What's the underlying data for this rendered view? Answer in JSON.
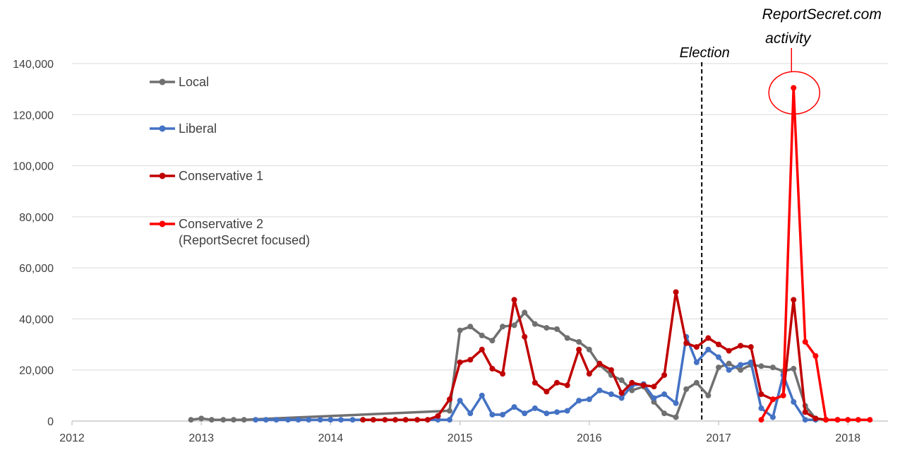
{
  "chart_data": {
    "type": "line",
    "title": "",
    "xlabel": "",
    "ylabel": "",
    "xlim": [
      2012,
      2018.19
    ],
    "ylim": [
      0,
      140000
    ],
    "x_ticks": [
      "2012",
      "2013",
      "2014",
      "2015",
      "2016",
      "2017",
      "2018"
    ],
    "y_ticks": [
      "0",
      "20,000",
      "40,000",
      "60,000",
      "80,000",
      "100,000",
      "120,000",
      "140,000"
    ],
    "grid": "horizontal",
    "legend_position": "top-left",
    "series": [
      {
        "name": "Local",
        "color": "#707070",
        "x": [
          2012.92,
          2013.0,
          2013.08,
          2013.17,
          2013.25,
          2013.33,
          2014.92,
          2015.0,
          2015.08,
          2015.17,
          2015.25,
          2015.33,
          2015.42,
          2015.5,
          2015.58,
          2015.67,
          2015.75,
          2015.83,
          2015.92,
          2016.0,
          2016.08,
          2016.17,
          2016.25,
          2016.33,
          2016.42,
          2016.5,
          2016.58,
          2016.67,
          2016.75,
          2016.83,
          2016.92,
          2017.0,
          2017.08,
          2017.17,
          2017.25,
          2017.33,
          2017.42,
          2017.5,
          2017.58,
          2017.67,
          2017.75,
          2017.83
        ],
        "y": [
          500,
          1000,
          500,
          500,
          500,
          500,
          4000,
          35500,
          37000,
          33500,
          31500,
          37000,
          37500,
          42500,
          38000,
          36500,
          36000,
          32500,
          31000,
          28000,
          22000,
          18000,
          16000,
          12000,
          13500,
          7500,
          3000,
          1500,
          12500,
          15000,
          10000,
          21000,
          22500,
          20000,
          22000,
          21500,
          21000,
          19500,
          20500,
          6000,
          1000,
          500
        ]
      },
      {
        "name": "Liberal",
        "color": "#4472C4",
        "x": [
          2013.42,
          2013.5,
          2013.58,
          2013.67,
          2013.75,
          2013.83,
          2013.92,
          2014.0,
          2014.08,
          2014.17,
          2014.83,
          2014.92,
          2015.0,
          2015.08,
          2015.17,
          2015.25,
          2015.33,
          2015.42,
          2015.5,
          2015.58,
          2015.67,
          2015.75,
          2015.83,
          2015.92,
          2016.0,
          2016.08,
          2016.17,
          2016.25,
          2016.33,
          2016.42,
          2016.5,
          2016.58,
          2016.67,
          2016.75,
          2016.83,
          2016.92,
          2017.0,
          2017.08,
          2017.17,
          2017.25,
          2017.33,
          2017.42,
          2017.5,
          2017.58,
          2017.67,
          2017.75
        ],
        "y": [
          500,
          500,
          500,
          500,
          500,
          500,
          500,
          500,
          500,
          500,
          500,
          500,
          8000,
          3000,
          10000,
          2500,
          2500,
          5500,
          3000,
          5000,
          3000,
          3500,
          4000,
          8000,
          8500,
          12000,
          10500,
          9000,
          14000,
          14500,
          9000,
          10500,
          7000,
          33000,
          23000,
          28000,
          25000,
          20000,
          22000,
          23000,
          5000,
          1500,
          18000,
          7500,
          500,
          500
        ]
      },
      {
        "name": "Conservative 1",
        "color": "#C00000",
        "x": [
          2014.25,
          2014.33,
          2014.42,
          2014.5,
          2014.58,
          2014.67,
          2014.75,
          2014.83,
          2014.92,
          2015.0,
          2015.08,
          2015.17,
          2015.25,
          2015.33,
          2015.42,
          2015.5,
          2015.58,
          2015.67,
          2015.75,
          2015.83,
          2015.92,
          2016.0,
          2016.08,
          2016.17,
          2016.25,
          2016.33,
          2016.42,
          2016.5,
          2016.58,
          2016.67,
          2016.75,
          2016.83,
          2016.92,
          2017.0,
          2017.08,
          2017.17,
          2017.25,
          2017.33,
          2017.42,
          2017.5,
          2017.58,
          2017.67,
          2017.75,
          2017.83,
          2017.92
        ],
        "y": [
          500,
          500,
          500,
          500,
          500,
          500,
          500,
          2000,
          8500,
          23000,
          24000,
          28000,
          20500,
          18500,
          47500,
          33000,
          15000,
          11500,
          15000,
          14000,
          28000,
          18500,
          22500,
          20000,
          11000,
          15000,
          14000,
          13500,
          18000,
          50500,
          30500,
          29000,
          32500,
          30000,
          27500,
          29500,
          29000,
          10500,
          8500,
          10000,
          47500,
          3500,
          1000,
          500,
          500
        ]
      },
      {
        "name": "Conservative 2 (ReportSecret focused)",
        "color": "#FF0000",
        "x": [
          2017.33,
          2017.42,
          2017.5,
          2017.58,
          2017.67,
          2017.75,
          2017.83,
          2017.92,
          2018.0,
          2018.08,
          2018.17
        ],
        "y": [
          500,
          8500,
          10000,
          130500,
          31000,
          25500,
          500,
          500,
          500,
          500,
          500
        ]
      }
    ],
    "legend_labels": [
      {
        "line1": "Local",
        "line2": ""
      },
      {
        "line1": "Liberal",
        "line2": ""
      },
      {
        "line1": "Conservative 1",
        "line2": ""
      },
      {
        "line1": "Conservative 2",
        "line2": "(ReportSecret focused)"
      }
    ],
    "annotations": {
      "election": {
        "label": "Election",
        "x": 2016.87
      },
      "peak": {
        "line1": "ReportSecret.com",
        "line2": "activity",
        "x": 2017.58,
        "y": 130500
      }
    }
  }
}
